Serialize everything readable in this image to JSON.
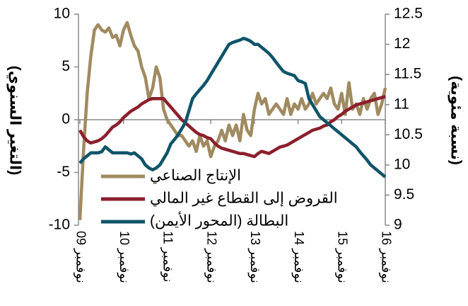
{
  "chart_data": {
    "type": "line",
    "y_label": "(التغير السنوي)",
    "y2_label": "(نسبة مئوية)",
    "categories": [
      "نوفمبر 09",
      null,
      null,
      null,
      null,
      null,
      null,
      null,
      null,
      null,
      null,
      null,
      "نوفمبر 10",
      null,
      null,
      null,
      null,
      null,
      null,
      null,
      null,
      null,
      null,
      null,
      "نوفمبر 11",
      null,
      null,
      null,
      null,
      null,
      null,
      null,
      null,
      null,
      null,
      null,
      "نوفمبر 12",
      null,
      null,
      null,
      null,
      null,
      null,
      null,
      null,
      null,
      null,
      null,
      "نوفمبر 13",
      null,
      null,
      null,
      null,
      null,
      null,
      null,
      null,
      null,
      null,
      null,
      "نوفمبر 14",
      null,
      null,
      null,
      null,
      null,
      null,
      null,
      null,
      null,
      null,
      null,
      "نوفمبر 15",
      null,
      null,
      null,
      null,
      null,
      null,
      null,
      null,
      null,
      null,
      null,
      "نوفمبر 16"
    ],
    "ylim": [
      -10,
      10
    ],
    "yticks": [
      -10,
      -5,
      0,
      5,
      10
    ],
    "y2lim": [
      9,
      12.5
    ],
    "y2ticks": [
      9,
      9.5,
      10,
      10.5,
      11,
      11.5,
      12,
      12.5
    ],
    "grid": false,
    "legend": "lower-left",
    "series": [
      {
        "name": "الإنتاج الصناعي",
        "color": "#a08a60",
        "values": [
          -9.5,
          -3,
          2.5,
          6,
          8.5,
          9,
          8.5,
          8.3,
          8.7,
          7.8,
          8,
          7,
          8.5,
          9.2,
          8,
          7,
          6.5,
          5,
          4,
          2,
          3,
          5,
          4,
          1,
          0,
          -0.5,
          -1,
          -1.5,
          -1.5,
          -2,
          -2.5,
          -2,
          -3,
          -1.5,
          -2.5,
          -2,
          -3.5,
          -2.5,
          -2,
          -1,
          -2,
          -0.5,
          -1.5,
          -0.5,
          -2,
          0.5,
          -1,
          -1.5,
          1,
          2.5,
          1.5,
          2,
          0.5,
          1,
          1.5,
          1,
          0.5,
          2,
          0.5,
          1.5,
          1,
          2,
          1,
          1.5,
          2.5,
          1.5,
          2,
          2.5,
          2,
          3,
          1.5,
          1,
          2.5,
          0.5,
          3.5,
          1,
          1.5,
          0.5,
          2,
          1,
          2,
          2.5,
          0.5,
          1.5,
          3
        ]
      },
      {
        "name": "القروض إلى القطاع غير المالي",
        "color": "#8b1f2c",
        "values": [
          -1,
          -1.6,
          -2,
          -2.2,
          -2.1,
          -2,
          -1.8,
          -1.5,
          -1.1,
          -0.7,
          -0.5,
          -0.2,
          0.2,
          0.5,
          0.8,
          1,
          1.2,
          1.5,
          1.7,
          1.9,
          2,
          2,
          2,
          2,
          1.6,
          1.2,
          0.8,
          0.4,
          0,
          -0.3,
          -0.6,
          -0.9,
          -1.2,
          -1.4,
          -1.5,
          -1.7,
          -1.8,
          -2.2,
          -2.5,
          -2.7,
          -2.8,
          -2.9,
          -3,
          -3.1,
          -3.2,
          -3.2,
          -3.3,
          -3.4,
          -3.5,
          -3.2,
          -3,
          -3.1,
          -3.2,
          -3,
          -2.8,
          -2.6,
          -2.5,
          -2.4,
          -2.2,
          -2,
          -1.8,
          -1.6,
          -1.4,
          -1.2,
          -1,
          -0.9,
          -0.8,
          -0.6,
          -0.5,
          -0.2,
          0,
          0.3,
          0.5,
          0.8,
          1,
          1.2,
          1.4,
          1.5,
          1.6,
          1.7,
          1.8,
          1.9,
          2,
          2.1,
          2.2
        ]
      },
      {
        "name": "البطالة (المحور الأيمن)",
        "color": "#0f5468",
        "axis": "y2",
        "values": [
          10.03,
          10.1,
          10.15,
          10.2,
          10.2,
          10.2,
          10.22,
          10.3,
          10.25,
          10.2,
          10.2,
          10.2,
          10.2,
          10.2,
          10.18,
          10.2,
          10.15,
          10.1,
          10.0,
          9.95,
          9.92,
          9.95,
          10.0,
          10.1,
          10.2,
          10.35,
          10.42,
          10.5,
          10.6,
          10.7,
          10.9,
          11.1,
          11.18,
          11.25,
          11.32,
          11.4,
          11.5,
          11.6,
          11.7,
          11.8,
          11.9,
          12.0,
          12.03,
          12.05,
          12.07,
          12.1,
          12.08,
          12.05,
          12.0,
          12.0,
          11.95,
          11.9,
          11.85,
          11.78,
          11.7,
          11.62,
          11.55,
          11.52,
          11.5,
          11.48,
          11.4,
          11.38,
          11.35,
          11.1,
          11.0,
          10.9,
          10.8,
          10.75,
          10.7,
          10.65,
          10.6,
          10.55,
          10.5,
          10.45,
          10.4,
          10.35,
          10.3,
          10.22,
          10.15,
          10.08,
          10.0,
          9.95,
          9.9,
          9.85,
          9.8
        ]
      }
    ]
  }
}
